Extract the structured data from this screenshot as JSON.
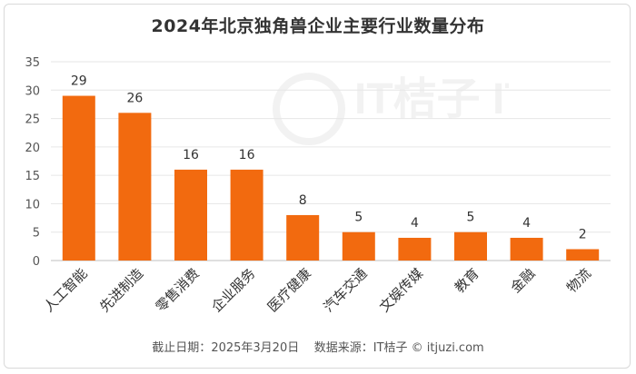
{
  "title": "2024年北京独角兽企业主要行业数量分布",
  "footer": {
    "date_label": "截止日期：",
    "date_value": "2025年3月20日",
    "source_label": "数据来源：",
    "source_value": "IT桔子 © itjuzi.com"
  },
  "watermark": "IT桔子 ITJUZI.COM",
  "colors": {
    "bar": "#F26A0F",
    "grid": "#e6e6e6",
    "axis": "#bfbfbf"
  },
  "chart_data": {
    "type": "bar",
    "title": "2024年北京独角兽企业主要行业数量分布",
    "xlabel": "",
    "ylabel": "",
    "categories": [
      "人工智能",
      "先进制造",
      "零售消费",
      "企业服务",
      "医疗健康",
      "汽车交通",
      "文娱传媒",
      "教育",
      "金融",
      "物流"
    ],
    "values": [
      29,
      26,
      16,
      16,
      8,
      5,
      4,
      5,
      4,
      2
    ],
    "ylim": [
      0,
      35
    ],
    "yticks": [
      0,
      5,
      10,
      15,
      20,
      25,
      30,
      35
    ],
    "grid": true,
    "legend": "none"
  }
}
